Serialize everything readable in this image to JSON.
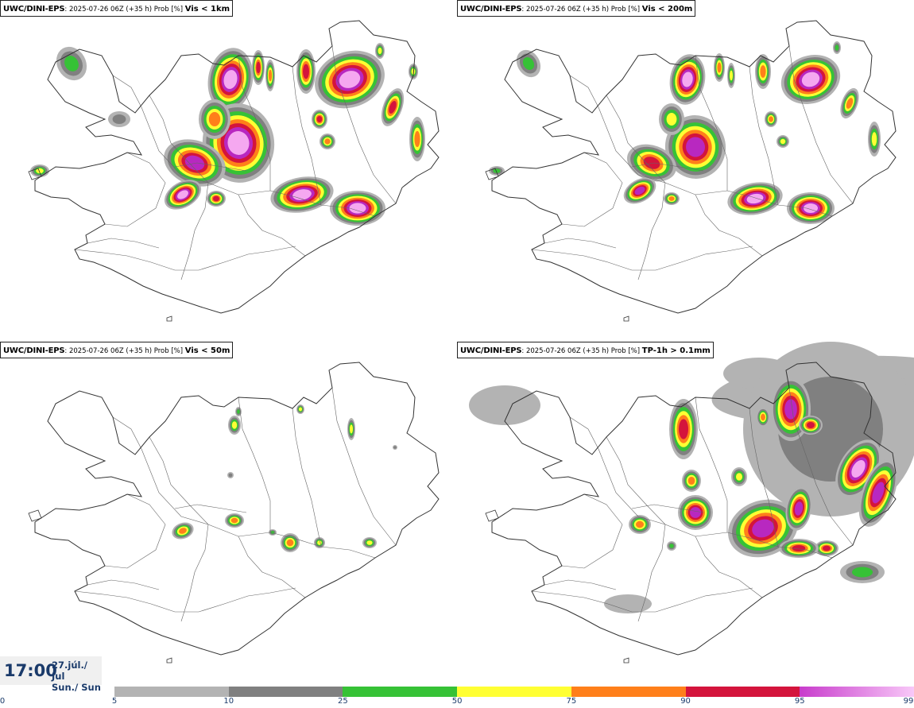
{
  "panels": [
    {
      "model": "UWC/DINI-EPS",
      "meta": ": 2025-07-26 06Z (+35 h) Prob [%] ",
      "param": "Vis < 1km"
    },
    {
      "model": "UWC/DINI-EPS",
      "meta": ": 2025-07-26 06Z (+35 h) Prob [%] ",
      "param": "Vis < 200m"
    },
    {
      "model": "UWC/DINI-EPS",
      "meta": ": 2025-07-26 06Z (+35 h) Prob [%] ",
      "param": "Vis < 50m"
    },
    {
      "model": "UWC/DINI-EPS",
      "meta": ": 2025-07-26 06Z (+35 h) Prob [%] ",
      "param": "TP-1h > 0.1mm"
    }
  ],
  "valid_time": {
    "time": "17:00",
    "date_line1": "27.júl./ Jul",
    "date_line2": "Sun./ Sun"
  },
  "color_scale": {
    "ticks": [
      "0",
      "5",
      "10",
      "25",
      "50",
      "75",
      "90",
      "95",
      "99"
    ],
    "colors": [
      "#b3b3b3",
      "#808080",
      "#36c236",
      "#ffff33",
      "#ff7f1a",
      "#d4143c",
      "#b828c0"
    ],
    "gradient_last": [
      "#c83ccc",
      "#f8c8f8"
    ]
  },
  "map_colors": {
    "coast": "#333333",
    "roads": "#666666"
  }
}
